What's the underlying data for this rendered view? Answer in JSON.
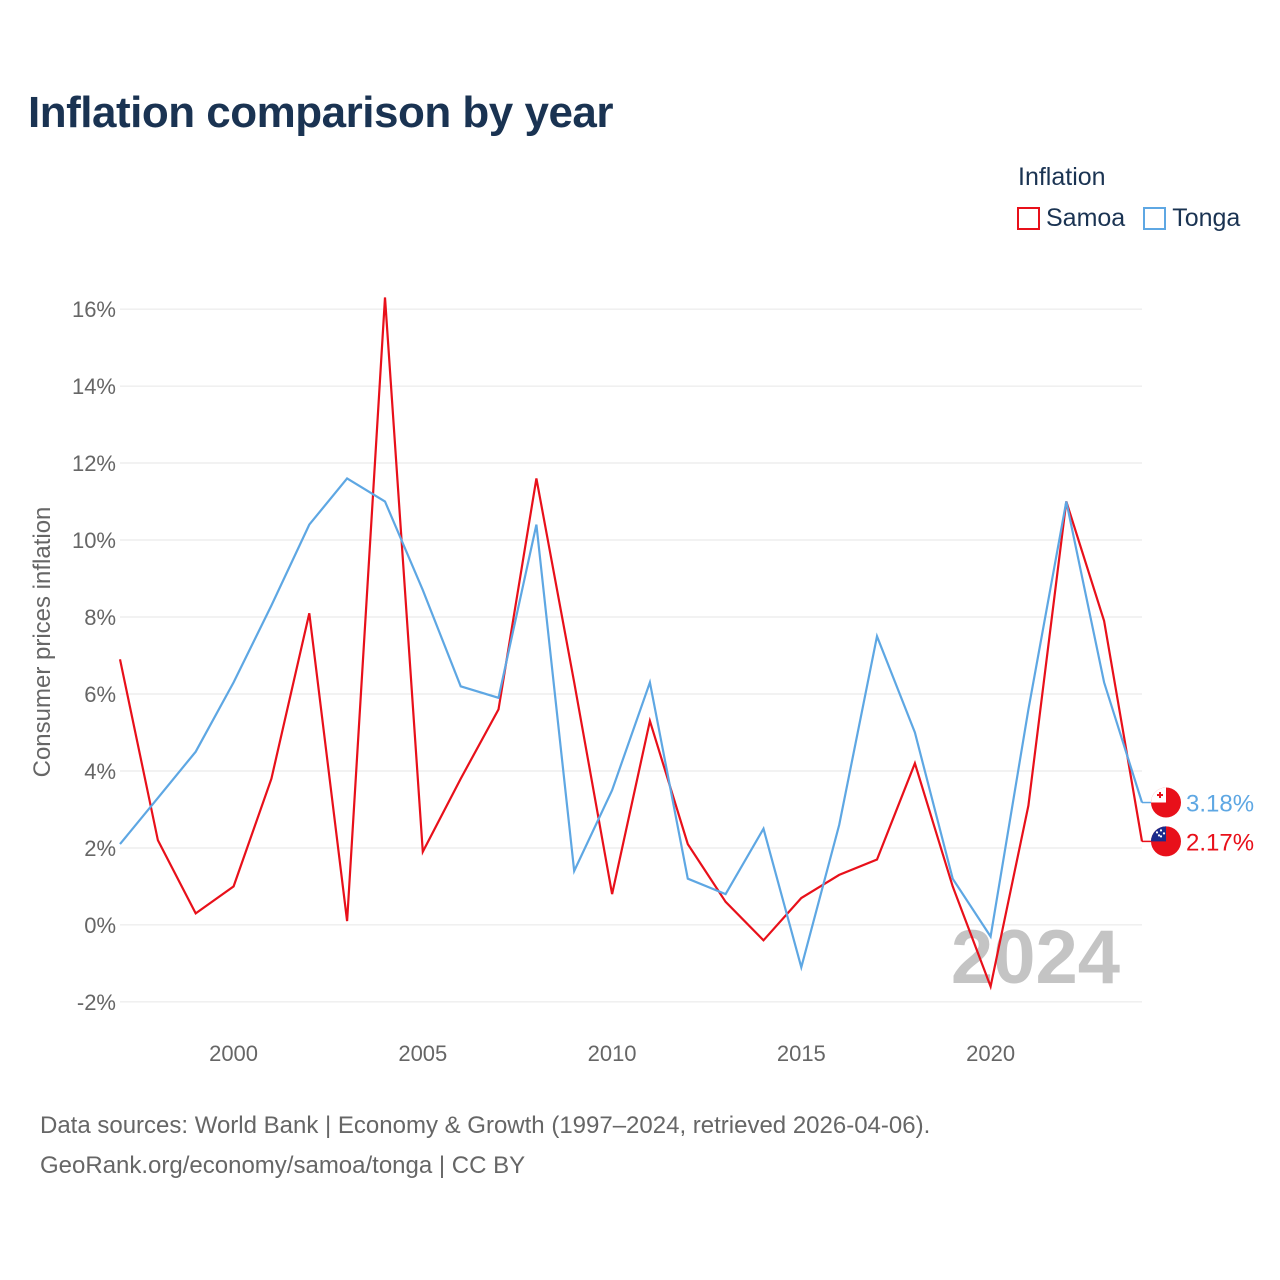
{
  "title": "Inflation comparison by year",
  "legend": {
    "title": "Inflation",
    "items": [
      {
        "name": "Samoa",
        "color": "#e8101a"
      },
      {
        "name": "Tonga",
        "color": "#5ea7e3"
      }
    ]
  },
  "source": {
    "line1": "Data sources: World Bank | Economy & Growth (1997–2024, retrieved 2026-04-06).",
    "line2": "GeoRank.org/economy/samoa/tonga | CC BY"
  },
  "chart_data": {
    "type": "line",
    "title": "Inflation comparison by year",
    "xlabel": "",
    "ylabel": "Consumer prices inflation",
    "x": [
      1997,
      1998,
      1999,
      2000,
      2001,
      2002,
      2003,
      2004,
      2005,
      2006,
      2007,
      2008,
      2009,
      2010,
      2011,
      2012,
      2013,
      2014,
      2015,
      2016,
      2017,
      2018,
      2019,
      2020,
      2021,
      2022,
      2023,
      2024
    ],
    "xlim": [
      1997,
      2024
    ],
    "ylim": [
      -2.6,
      16.6
    ],
    "x_ticks": [
      2000,
      2005,
      2010,
      2015,
      2020
    ],
    "x_tick_labels": [
      "2000",
      "2005",
      "2010",
      "2015",
      "2020"
    ],
    "y_ticks": [
      -2,
      0,
      2,
      4,
      6,
      8,
      10,
      12,
      14,
      16
    ],
    "y_tick_labels": [
      "-2%",
      "0%",
      "2%",
      "4%",
      "6%",
      "8%",
      "10%",
      "12%",
      "14%",
      "16%"
    ],
    "grid": true,
    "year_watermark": "2024",
    "series": [
      {
        "name": "Samoa",
        "color": "#e8101a",
        "values": [
          6.9,
          2.2,
          0.3,
          1.0,
          3.8,
          8.1,
          0.1,
          16.3,
          1.9,
          3.8,
          5.6,
          11.6,
          6.3,
          0.8,
          5.3,
          2.1,
          0.6,
          -0.4,
          0.7,
          1.3,
          1.7,
          4.2,
          1.0,
          -1.6,
          3.1,
          11.0,
          7.9,
          2.17
        ],
        "end_label": "2.17%"
      },
      {
        "name": "Tonga",
        "color": "#5ea7e3",
        "values": [
          2.1,
          3.3,
          4.5,
          6.3,
          8.3,
          10.4,
          11.6,
          11.0,
          8.7,
          6.2,
          5.9,
          10.4,
          1.4,
          3.5,
          6.3,
          1.2,
          0.8,
          2.5,
          -1.1,
          2.6,
          7.5,
          5.0,
          1.2,
          -0.3,
          5.6,
          11.0,
          6.3,
          3.18
        ],
        "end_label": "3.18%"
      }
    ]
  }
}
